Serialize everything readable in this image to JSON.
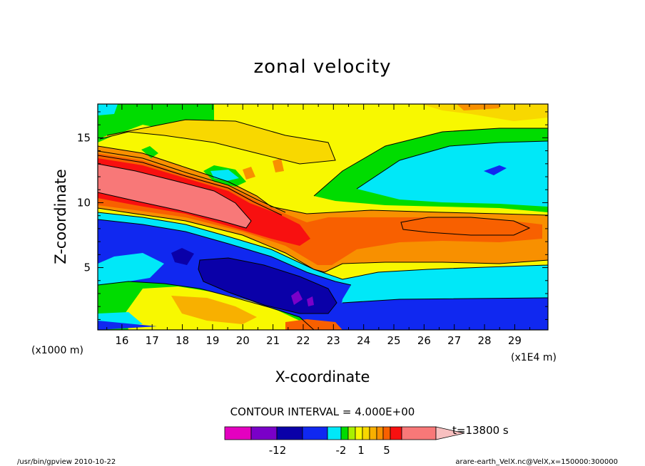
{
  "chart_data": {
    "type": "heatmap",
    "title": "zonal velocity",
    "xlabel": "X-coordinate",
    "ylabel": "Z-coordinate",
    "x_unit_label": "(x1E4 m)",
    "y_unit_label": "(x1000 m)",
    "xlim": [
      15.2,
      30.1
    ],
    "ylim": [
      0.2,
      17.6
    ],
    "x_ticks": [
      "16",
      "17",
      "18",
      "19",
      "20",
      "21",
      "22",
      "23",
      "24",
      "25",
      "26",
      "27",
      "28",
      "29"
    ],
    "y_ticks": [
      "5",
      "10",
      "15"
    ],
    "contour_interval_text": "CONTOUR INTERVAL = 4.000E+00",
    "time_label": "t=13800 s",
    "colorbar_labels": [
      "-12",
      "-2",
      "1",
      "5"
    ],
    "colorbar_levels": [
      -20,
      -16,
      -12,
      -8,
      -4,
      -2,
      -1,
      0,
      1,
      2,
      3,
      4,
      5,
      8,
      12
    ],
    "colorbar_colors": [
      "#e400c0",
      "#7a00c8",
      "#0a00a8",
      "#1028f0",
      "#00e8f8",
      "#00dc00",
      "#a8f000",
      "#f8f800",
      "#f8d800",
      "#f8b000",
      "#f89000",
      "#f86000",
      "#f81010",
      "#f87878",
      "#f8c0c0"
    ],
    "fields": [
      {
        "name": "background",
        "value": 0,
        "color": "#f8f800"
      },
      {
        "name": "lower-cyan",
        "value": -4,
        "color": "#00e8f8"
      },
      {
        "name": "lower-blue",
        "value": -8,
        "color": "#1028f0"
      },
      {
        "name": "dark-core",
        "value": -12,
        "color": "#0a00a8"
      },
      {
        "name": "purple-spots",
        "value": -16,
        "color": "#7a00c8"
      },
      {
        "name": "jet-red",
        "value": 5,
        "color": "#f81010"
      },
      {
        "name": "jet-pink-core",
        "value": 8,
        "color": "#f87878"
      },
      {
        "name": "orange-band",
        "value": 3,
        "color": "#f89000"
      },
      {
        "name": "east-cyan-patch",
        "value": -4,
        "color": "#00e8f8"
      },
      {
        "name": "green-layers",
        "value": -2,
        "color": "#00dc00"
      }
    ]
  },
  "footer": {
    "left": "/usr/bin/gpview   2010-10-22",
    "right": "arare-earth_VelX.nc@VelX,x=150000:300000"
  }
}
